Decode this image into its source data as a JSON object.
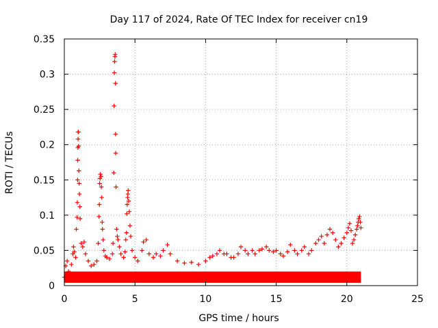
{
  "chart_data": {
    "type": "scatter",
    "title": "Day 117 of 2024, Rate Of TEC Index for receiver cn19",
    "xlabel": "GPS time / hours",
    "ylabel": "ROTI / TECUs",
    "xlim": [
      0,
      25
    ],
    "ylim": [
      0,
      0.35
    ],
    "xticks": [
      0,
      5,
      10,
      15,
      20,
      25
    ],
    "xtick_labels": [
      "0",
      "5",
      "10",
      "15",
      "20",
      "25"
    ],
    "yticks": [
      0,
      0.05,
      0.1,
      0.15,
      0.2,
      0.25,
      0.3,
      0.35
    ],
    "ytick_labels": [
      "0",
      "0.05",
      "0.1",
      "0.15",
      "0.2",
      "0.25",
      "0.3",
      "0.35"
    ],
    "grid": true,
    "marker": "+",
    "color": "#ff0000",
    "series": [
      {
        "points": [
          [
            0.0,
            0.012
          ],
          [
            0.1,
            0.028
          ],
          [
            0.2,
            0.035
          ],
          [
            0.3,
            0.02
          ],
          [
            0.4,
            0.018
          ],
          [
            0.5,
            0.03
          ],
          [
            0.6,
            0.045
          ],
          [
            0.65,
            0.055
          ],
          [
            0.7,
            0.048
          ],
          [
            0.8,
            0.04
          ],
          [
            0.85,
            0.08
          ],
          [
            0.9,
            0.097
          ],
          [
            0.92,
            0.118
          ],
          [
            0.94,
            0.15
          ],
          [
            0.95,
            0.178
          ],
          [
            0.96,
            0.196
          ],
          [
            0.97,
            0.208
          ],
          [
            0.98,
            0.218
          ],
          [
            1.0,
            0.218
          ],
          [
            1.02,
            0.198
          ],
          [
            1.03,
            0.163
          ],
          [
            1.05,
            0.145
          ],
          [
            1.07,
            0.13
          ],
          [
            1.1,
            0.112
          ],
          [
            1.12,
            0.095
          ],
          [
            1.2,
            0.06
          ],
          [
            1.3,
            0.055
          ],
          [
            1.4,
            0.062
          ],
          [
            1.5,
            0.045
          ],
          [
            1.7,
            0.035
          ],
          [
            1.9,
            0.028
          ],
          [
            2.1,
            0.03
          ],
          [
            2.3,
            0.035
          ],
          [
            2.4,
            0.06
          ],
          [
            2.45,
            0.098
          ],
          [
            2.48,
            0.115
          ],
          [
            2.5,
            0.145
          ],
          [
            2.52,
            0.152
          ],
          [
            2.55,
            0.158
          ],
          [
            2.6,
            0.155
          ],
          [
            2.62,
            0.14
          ],
          [
            2.65,
            0.125
          ],
          [
            2.68,
            0.09
          ],
          [
            2.7,
            0.08
          ],
          [
            2.75,
            0.065
          ],
          [
            2.8,
            0.05
          ],
          [
            2.9,
            0.042
          ],
          [
            3.0,
            0.04
          ],
          [
            3.2,
            0.038
          ],
          [
            3.4,
            0.045
          ],
          [
            3.45,
            0.06
          ],
          [
            3.5,
            0.16
          ],
          [
            3.52,
            0.255
          ],
          [
            3.54,
            0.302
          ],
          [
            3.56,
            0.318
          ],
          [
            3.58,
            0.325
          ],
          [
            3.6,
            0.328
          ],
          [
            3.62,
            0.287
          ],
          [
            3.63,
            0.215
          ],
          [
            3.64,
            0.188
          ],
          [
            3.66,
            0.14
          ],
          [
            3.7,
            0.08
          ],
          [
            3.75,
            0.07
          ],
          [
            3.8,
            0.065
          ],
          [
            3.9,
            0.055
          ],
          [
            4.0,
            0.045
          ],
          [
            4.2,
            0.04
          ],
          [
            4.3,
            0.048
          ],
          [
            4.35,
            0.065
          ],
          [
            4.4,
            0.075
          ],
          [
            4.42,
            0.102
          ],
          [
            4.45,
            0.115
          ],
          [
            4.48,
            0.125
          ],
          [
            4.5,
            0.13
          ],
          [
            4.52,
            0.135
          ],
          [
            4.55,
            0.12
          ],
          [
            4.6,
            0.105
          ],
          [
            4.65,
            0.085
          ],
          [
            4.7,
            0.07
          ],
          [
            4.8,
            0.05
          ],
          [
            5.0,
            0.04
          ],
          [
            5.2,
            0.035
          ],
          [
            5.5,
            0.05
          ],
          [
            5.6,
            0.062
          ],
          [
            5.8,
            0.065
          ],
          [
            6.0,
            0.045
          ],
          [
            6.3,
            0.04
          ],
          [
            6.5,
            0.045
          ],
          [
            6.8,
            0.042
          ],
          [
            7.0,
            0.05
          ],
          [
            7.3,
            0.058
          ],
          [
            7.5,
            0.045
          ],
          [
            8.0,
            0.035
          ],
          [
            8.5,
            0.032
          ],
          [
            9.0,
            0.033
          ],
          [
            9.5,
            0.03
          ],
          [
            10.0,
            0.035
          ],
          [
            10.3,
            0.04
          ],
          [
            10.5,
            0.042
          ],
          [
            10.8,
            0.045
          ],
          [
            11.0,
            0.05
          ],
          [
            11.3,
            0.045
          ],
          [
            11.5,
            0.045
          ],
          [
            11.8,
            0.04
          ],
          [
            12.0,
            0.04
          ],
          [
            12.3,
            0.045
          ],
          [
            12.5,
            0.055
          ],
          [
            12.8,
            0.05
          ],
          [
            13.0,
            0.045
          ],
          [
            13.3,
            0.05
          ],
          [
            13.5,
            0.045
          ],
          [
            13.8,
            0.05
          ],
          [
            14.0,
            0.052
          ],
          [
            14.3,
            0.055
          ],
          [
            14.5,
            0.05
          ],
          [
            14.8,
            0.048
          ],
          [
            15.0,
            0.05
          ],
          [
            15.3,
            0.045
          ],
          [
            15.5,
            0.042
          ],
          [
            15.8,
            0.048
          ],
          [
            16.0,
            0.058
          ],
          [
            16.3,
            0.05
          ],
          [
            16.5,
            0.045
          ],
          [
            16.8,
            0.05
          ],
          [
            17.0,
            0.055
          ],
          [
            17.3,
            0.045
          ],
          [
            17.5,
            0.05
          ],
          [
            17.8,
            0.06
          ],
          [
            18.0,
            0.065
          ],
          [
            18.2,
            0.07
          ],
          [
            18.4,
            0.06
          ],
          [
            18.6,
            0.072
          ],
          [
            18.8,
            0.08
          ],
          [
            19.0,
            0.075
          ],
          [
            19.2,
            0.065
          ],
          [
            19.4,
            0.055
          ],
          [
            19.6,
            0.06
          ],
          [
            19.8,
            0.068
          ],
          [
            20.0,
            0.075
          ],
          [
            20.1,
            0.082
          ],
          [
            20.2,
            0.088
          ],
          [
            20.3,
            0.078
          ],
          [
            20.4,
            0.06
          ],
          [
            20.5,
            0.065
          ],
          [
            20.6,
            0.072
          ],
          [
            20.7,
            0.08
          ],
          [
            20.75,
            0.085
          ],
          [
            20.8,
            0.09
          ],
          [
            20.85,
            0.095
          ],
          [
            20.9,
            0.098
          ],
          [
            20.95,
            0.09
          ],
          [
            21.0,
            0.082
          ]
        ]
      }
    ]
  }
}
